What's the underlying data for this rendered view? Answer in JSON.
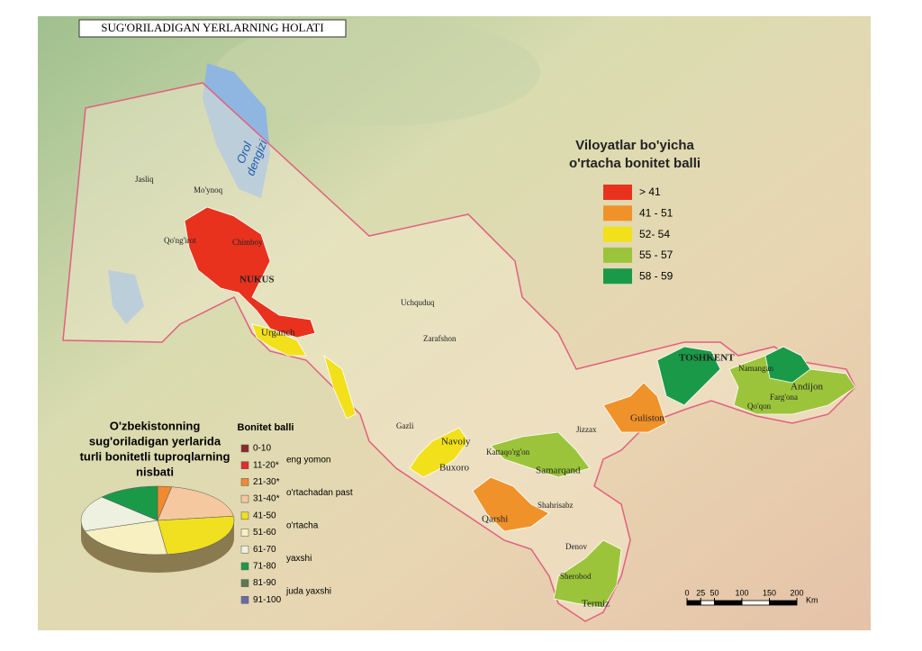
{
  "title": "SUG'ORILADIGAN YERLARNING HOLATI",
  "region_legend": {
    "title": [
      "Viloyatlar bo'yicha",
      "o'rtacha bonitet balli"
    ],
    "items": [
      {
        "label": "> 41",
        "color": "#e8321e"
      },
      {
        "label": "41 - 51",
        "color": "#f0922a"
      },
      {
        "label": "52- 54",
        "color": "#f2e01a"
      },
      {
        "label": "55 - 57",
        "color": "#9cc43a"
      },
      {
        "label": "58 - 59",
        "color": "#1a9a48"
      }
    ]
  },
  "water": [
    "Orol",
    "dengizi"
  ],
  "places": [
    "Jasliq",
    "Mo'ynoq",
    "Qo'ng'irot",
    "Chimboy",
    "NUKUS",
    "Urganch",
    "Uchquduq",
    "Zarafshon",
    "Gazli",
    "Navoiy",
    "Buxoro",
    "Kattaqo'rg'on",
    "Samarqand",
    "Qarshi",
    "Shahrisabz",
    "Denov",
    "Sherobod",
    "Termiz",
    "Jizzax",
    "Guliston",
    "TOSHKENT",
    "Namangan",
    "Andijon",
    "Farg'ona",
    "Qo'qon"
  ],
  "chart_data": {
    "type": "pie",
    "title": [
      "O'zbekistonning",
      "sug'oriladigan yerlarida",
      "turli bonitetli tuproqlarning",
      "nisbati"
    ],
    "legend_title": "Bonitet balli",
    "categories": [
      "0-10",
      "11-20*",
      "21-30*",
      "31-40*",
      "41-50",
      "51-60",
      "61-70",
      "71-80",
      "81-90",
      "91-100"
    ],
    "values": [
      0,
      0,
      3,
      20,
      25,
      22,
      17,
      13,
      0,
      0
    ],
    "colors": [
      "#8b2a2a",
      "#e02c2c",
      "#f08a30",
      "#f5c8a0",
      "#f0e020",
      "#f8f0c0",
      "#eef0e0",
      "#1a9a48",
      "#5a7a50",
      "#6a6aa8"
    ],
    "group_labels": [
      "eng yomon",
      "o'rtachadan past",
      "o'rtacha",
      "yaxshi",
      "juda yaxshi"
    ]
  },
  "scale": {
    "ticks": [
      0,
      25,
      50,
      100,
      150,
      200
    ],
    "unit": "Km"
  }
}
